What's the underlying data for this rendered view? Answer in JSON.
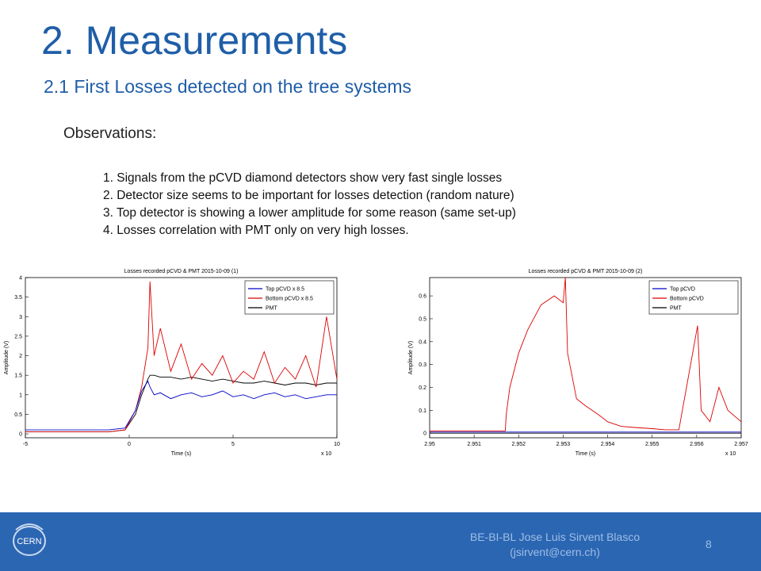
{
  "slide": {
    "title": "2. Measurements",
    "subtitle": "2.1 First Losses detected on the tree systems",
    "observations_heading": "Observations:",
    "observations": [
      "1. Signals from the pCVD diamond detectors show very fast single losses",
      "2. Detector size seems to be important for losses detection (random nature)",
      "3. Top detector is showing a lower amplitude for some reason (same set-up)",
      "4. Losses correlation with PMT only on very high losses."
    ]
  },
  "footer": {
    "logo_text": "CERN",
    "author_line1": "BE-BI-BL Jose Luis Sirvent Blasco",
    "author_line2": "(jsirvent@cern.ch)",
    "page_number": "8",
    "background": "#2b66b3"
  },
  "chart_data": [
    {
      "type": "line",
      "title": "Losses recorded pCVD & PMT 2015-10-09 (1)",
      "xlabel": "Time (s)",
      "ylabel": "Amplitude (V)",
      "x_exponent_label": "x 10",
      "xlim": [
        -5,
        10
      ],
      "ylim": [
        -0.1,
        4
      ],
      "xticks": [
        "-5",
        "0",
        "5",
        "10"
      ],
      "yticks": [
        "0",
        "0.5",
        "1",
        "1.5",
        "2",
        "2.5",
        "3",
        "3.5",
        "4"
      ],
      "x": [
        -5,
        -1,
        -0.2,
        0.3,
        0.6,
        0.9,
        1.0,
        1.2,
        1.5,
        2,
        2.5,
        3,
        3.5,
        4,
        4.5,
        5,
        5.5,
        6,
        6.5,
        7,
        7.5,
        8,
        8.5,
        9,
        9.5,
        10
      ],
      "series": [
        {
          "name": "Top pCVD x 8.5",
          "color": "#0000cc",
          "values": [
            0.1,
            0.1,
            0.15,
            0.6,
            1.1,
            1.35,
            1.2,
            1.0,
            1.05,
            0.9,
            1.0,
            1.05,
            0.95,
            1.0,
            1.1,
            0.95,
            1.0,
            0.9,
            1.0,
            1.05,
            0.95,
            1.0,
            0.9,
            0.95,
            1.0,
            1.0
          ]
        },
        {
          "name": "Bottom pCVD x 8.5",
          "color": "#dd0000",
          "values": [
            0.05,
            0.05,
            0.1,
            0.6,
            1.2,
            2.2,
            3.9,
            2.0,
            2.7,
            1.6,
            2.3,
            1.4,
            1.8,
            1.5,
            2.0,
            1.3,
            1.6,
            1.4,
            2.1,
            1.3,
            1.7,
            1.4,
            2.0,
            1.2,
            3.0,
            1.4
          ]
        },
        {
          "name": "PMT",
          "color": "#000000",
          "values": [
            0.05,
            0.05,
            0.1,
            0.5,
            1.0,
            1.4,
            1.5,
            1.5,
            1.45,
            1.45,
            1.4,
            1.45,
            1.4,
            1.35,
            1.4,
            1.35,
            1.3,
            1.3,
            1.35,
            1.3,
            1.25,
            1.3,
            1.3,
            1.25,
            1.3,
            1.3
          ]
        }
      ],
      "legend": "top-right"
    },
    {
      "type": "line",
      "title": "Losses recorded pCVD & PMT 2015-10-09 (2)",
      "xlabel": "Time (s)",
      "ylabel": "Amplitude (V)",
      "x_exponent_label": "x 10",
      "xlim": [
        2.95,
        2.957
      ],
      "ylim": [
        -0.02,
        0.68
      ],
      "xticks": [
        "2.95",
        "2.951",
        "2.952",
        "2.953",
        "2.954",
        "2.955",
        "2.956",
        "2.957"
      ],
      "yticks": [
        "0",
        "0.1",
        "0.2",
        "0.3",
        "0.4",
        "0.5",
        "0.6"
      ],
      "x": [
        2.95,
        2.9517,
        2.95172,
        2.9518,
        2.952,
        2.9522,
        2.9525,
        2.9528,
        2.953,
        2.95305,
        2.9531,
        2.9533,
        2.9535,
        2.9538,
        2.954,
        2.9543,
        2.9546,
        2.955,
        2.9553,
        2.9556,
        2.95602,
        2.9561,
        2.9563,
        2.9565,
        2.9567,
        2.957
      ],
      "series": [
        {
          "name": "Top pCVD",
          "color": "#0000cc",
          "values": [
            0.005,
            0.005,
            0.005,
            0.005,
            0.005,
            0.005,
            0.005,
            0.005,
            0.005,
            0.005,
            0.005,
            0.005,
            0.005,
            0.005,
            0.005,
            0.005,
            0.005,
            0.005,
            0.005,
            0.005,
            0.005,
            0.005,
            0.005,
            0.005,
            0.005,
            0.005
          ]
        },
        {
          "name": "Bottom pCVD",
          "color": "#dd0000",
          "values": [
            0.01,
            0.01,
            0.08,
            0.2,
            0.35,
            0.45,
            0.56,
            0.6,
            0.57,
            0.68,
            0.35,
            0.15,
            0.12,
            0.08,
            0.05,
            0.03,
            0.025,
            0.02,
            0.015,
            0.015,
            0.47,
            0.1,
            0.05,
            0.2,
            0.1,
            0.05
          ]
        },
        {
          "name": "PMT",
          "color": "#000000",
          "values": [
            0.0,
            0.0,
            0.0,
            0.0,
            0.0,
            0.0,
            0.0,
            0.0,
            0.0,
            0.0,
            0.0,
            0.0,
            0.0,
            0.0,
            0.0,
            0.0,
            0.0,
            0.0,
            0.0,
            0.0,
            0.0,
            0.0,
            0.0,
            0.0,
            0.0,
            0.0
          ]
        }
      ],
      "legend": "top-right"
    }
  ]
}
